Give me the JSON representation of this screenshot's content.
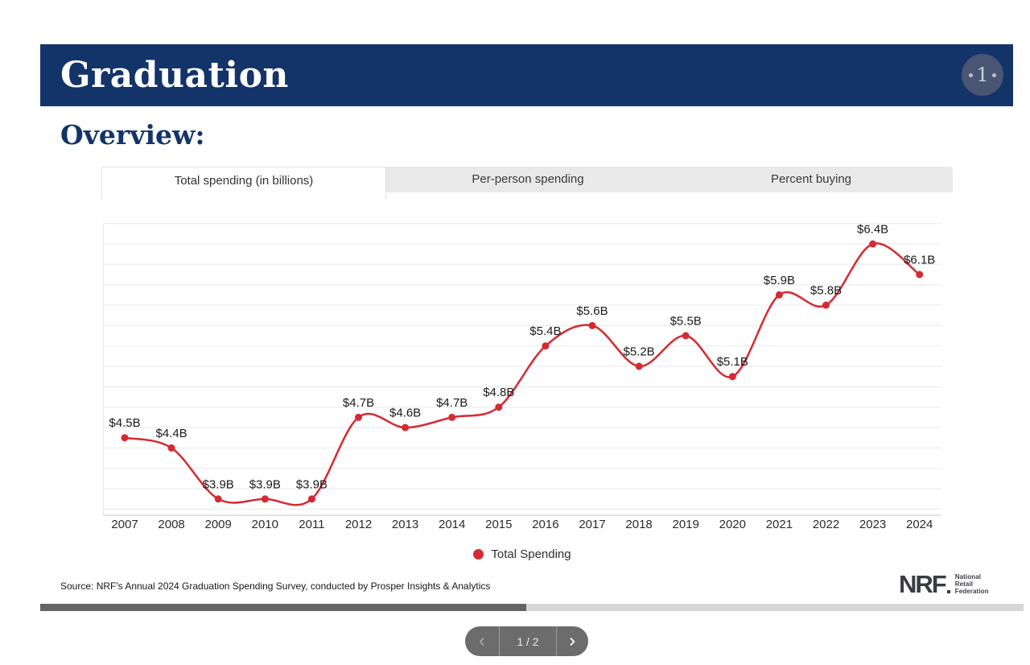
{
  "header": {
    "title": "Graduation",
    "section_heading": "Overview:",
    "badge": "1",
    "bar_color": "#123469"
  },
  "tabs": [
    {
      "label": "Total spending (in billions)",
      "active": true
    },
    {
      "label": "Per-person spending",
      "active": false
    },
    {
      "label": "Percent buying",
      "active": false
    }
  ],
  "chart_data": {
    "type": "line",
    "title": "Total spending (in billions)",
    "categories": [
      "2007",
      "2008",
      "2009",
      "2010",
      "2011",
      "2012",
      "2013",
      "2014",
      "2015",
      "2016",
      "2017",
      "2018",
      "2019",
      "2020",
      "2021",
      "2022",
      "2023",
      "2024"
    ],
    "series": [
      {
        "name": "Total Spending",
        "values": [
          4.5,
          4.4,
          3.9,
          3.9,
          3.9,
          4.7,
          4.6,
          4.7,
          4.8,
          5.4,
          5.6,
          5.2,
          5.5,
          5.1,
          5.9,
          5.8,
          6.4,
          6.1
        ],
        "data_labels": [
          "$4.5B",
          "$4.4B",
          "$3.9B",
          "$3.9B",
          "$3.9B",
          "$4.7B",
          "$4.6B",
          "$4.7B",
          "$4.8B",
          "$5.4B",
          "$5.6B",
          "$5.2B",
          "$5.5B",
          "$5.1B",
          "$5.9B",
          "$5.8B",
          "$6.4B",
          "$6.1B"
        ]
      }
    ],
    "line_color": "#D62A32",
    "ylim": [
      3.74,
      6.66
    ],
    "grid": {
      "orientation": "horizontal",
      "min": 3.8,
      "max": 6.6,
      "step": 0.2
    },
    "xlabel": "",
    "ylabel": "",
    "legend_position": "bottom"
  },
  "legend": {
    "color": "#D62A32"
  },
  "footer": {
    "source": "Source: NRF's Annual 2024 Graduation Spending Survey, conducted by Prosper Insights & Analytics",
    "logo": {
      "text": "NRF",
      "tagline_lines": [
        "National",
        "Retail",
        "Federation"
      ]
    }
  },
  "pager": {
    "label": "1 / 2",
    "prev_icon": "chevron-left",
    "next_icon": "chevron-right"
  },
  "colors": {
    "accent_red": "#D62A32",
    "navy": "#123469",
    "tab_gray": "#E9E9E9",
    "gridline": "#E8E8E8",
    "axis_line": "#C9C9C9",
    "scroll_thumb": "#646464",
    "scroll_track": "#D6D6D6",
    "pager_bg": "#6C6C6C"
  }
}
